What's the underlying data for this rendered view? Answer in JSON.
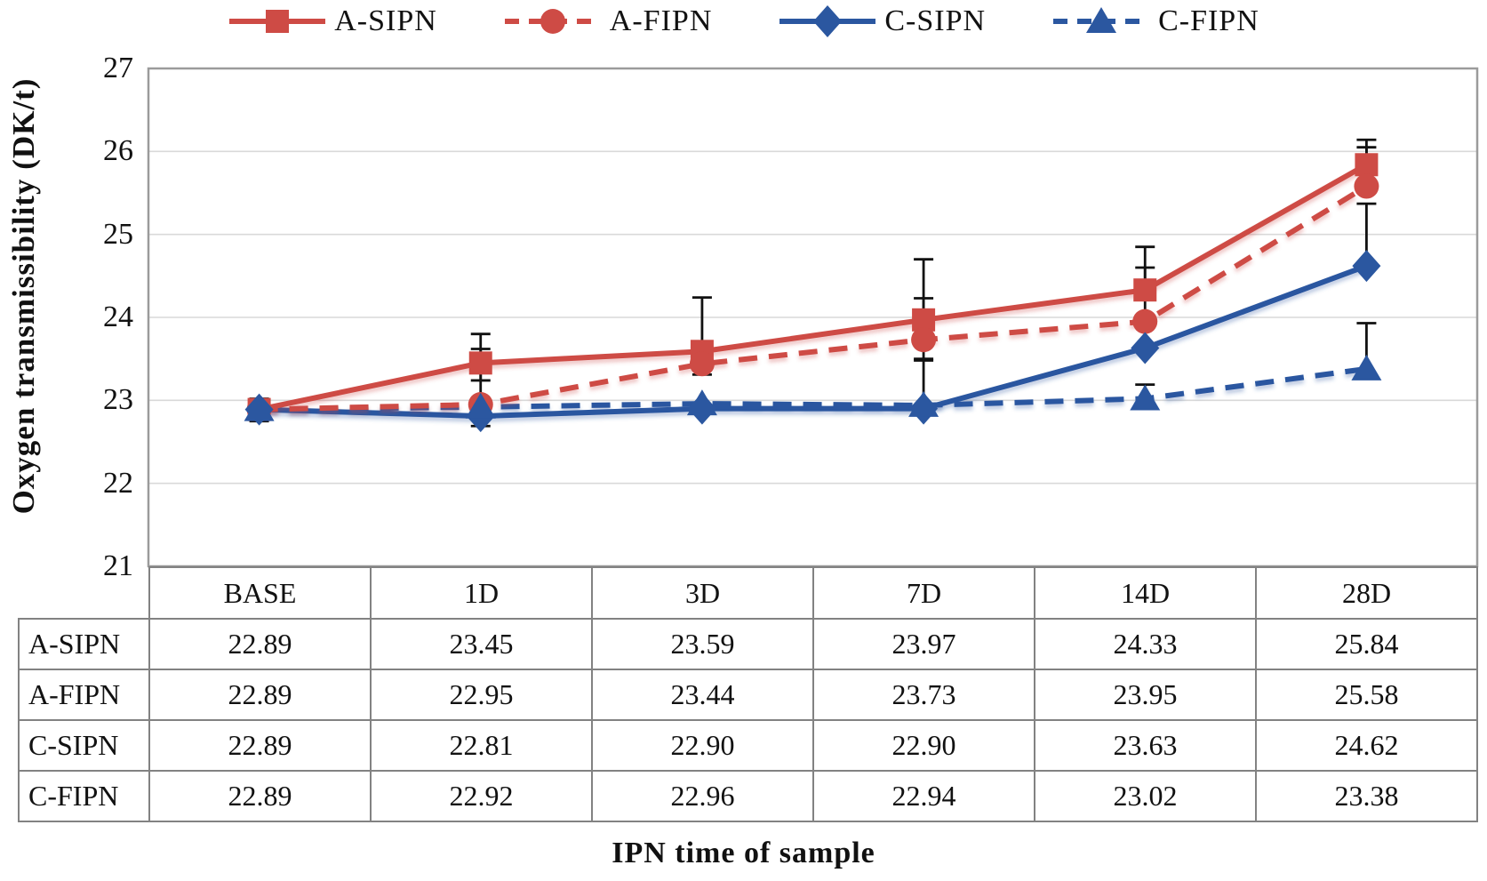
{
  "figure": {
    "background": "#ffffff",
    "plot_border_color": "#9b9b9b",
    "gridline_color": "#d9d9d9",
    "table_border_color": "#828282",
    "text_color": "#111111",
    "accent_red": "#CE4B45",
    "accent_blue": "#2B57A0"
  },
  "chart_data": {
    "type": "line",
    "title": "",
    "xlabel": "IPN time of sample",
    "ylabel": "Oxygen transmissibility (DK/t)",
    "categories": [
      "BASE",
      "1D",
      "3D",
      "7D",
      "14D",
      "28D"
    ],
    "ylim": [
      21,
      27
    ],
    "yticks": [
      27,
      26,
      25,
      24,
      23,
      22,
      21
    ],
    "grid": true,
    "legend_position": "top",
    "value_format": "0.00",
    "error_bar_color": "#111111",
    "series": [
      {
        "name": "A-SIPN",
        "color": "#CE4B45",
        "line": "solid",
        "marker": "square",
        "values": [
          22.89,
          23.45,
          23.59,
          23.97,
          24.33,
          25.84
        ],
        "err_up": [
          0.13,
          0.35,
          0.65,
          0.73,
          0.52,
          0.3
        ],
        "err_down": [
          0.14,
          0.21,
          0.28,
          0.25,
          0,
          0
        ]
      },
      {
        "name": "A-FIPN",
        "color": "#CE4B45",
        "line": "dashed",
        "marker": "circle",
        "values": [
          22.89,
          22.95,
          23.44,
          23.73,
          23.95,
          25.58
        ],
        "err_up": [
          0,
          0.67,
          0,
          0.5,
          0.65,
          0.47
        ],
        "err_down": [
          0,
          0,
          0,
          0.25,
          0.3,
          0
        ]
      },
      {
        "name": "C-SIPN",
        "color": "#2B57A0",
        "line": "solid",
        "marker": "diamond",
        "values": [
          22.89,
          22.81,
          22.9,
          22.9,
          23.63,
          24.62
        ],
        "err_up": [
          0,
          0,
          0,
          0.6,
          0,
          0.75
        ],
        "err_down": [
          0.12,
          0.12,
          0,
          0,
          0,
          0
        ]
      },
      {
        "name": "C-FIPN",
        "color": "#2B57A0",
        "line": "dashed",
        "marker": "triangle",
        "values": [
          22.89,
          22.92,
          22.96,
          22.94,
          23.02,
          23.38
        ],
        "err_up": [
          0,
          0,
          0,
          0,
          0.17,
          0.55
        ],
        "err_down": [
          0.12,
          0.1,
          0,
          0,
          0,
          0
        ]
      }
    ]
  }
}
